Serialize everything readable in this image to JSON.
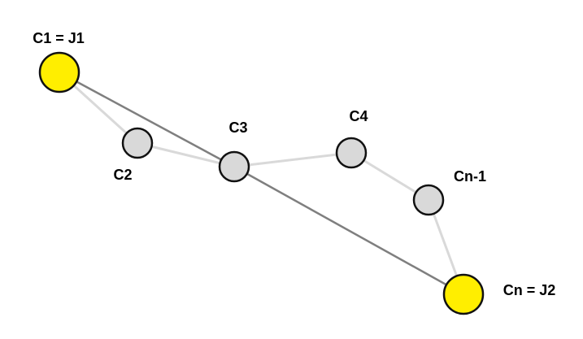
{
  "colors": {
    "joint_fill": "#ffee00",
    "chain_fill": "#d9d9d9",
    "node_stroke": "#111111",
    "chain_edge": "#d9d9d9",
    "direct_edge": "#7f7f7f",
    "label": "#000000"
  },
  "nodes": [
    {
      "id": "C1",
      "label": "C1 = J1",
      "kind": "joint"
    },
    {
      "id": "C2",
      "label": "C2",
      "kind": "chain"
    },
    {
      "id": "C3",
      "label": "C3",
      "kind": "chain"
    },
    {
      "id": "C4",
      "label": "C4",
      "kind": "chain"
    },
    {
      "id": "Cn-1",
      "label": "Cn-1",
      "kind": "chain"
    },
    {
      "id": "Cn",
      "label": "Cn = J2",
      "kind": "joint"
    }
  ],
  "edges": [
    {
      "from": "C1",
      "to": "C2",
      "style": "chain"
    },
    {
      "from": "C2",
      "to": "C3",
      "style": "chain"
    },
    {
      "from": "C3",
      "to": "C4",
      "style": "chain"
    },
    {
      "from": "C4",
      "to": "Cn-1",
      "style": "chain"
    },
    {
      "from": "Cn-1",
      "to": "Cn",
      "style": "chain"
    },
    {
      "from": "C1",
      "to": "C3",
      "style": "direct"
    },
    {
      "from": "C3",
      "to": "Cn",
      "style": "direct"
    }
  ]
}
